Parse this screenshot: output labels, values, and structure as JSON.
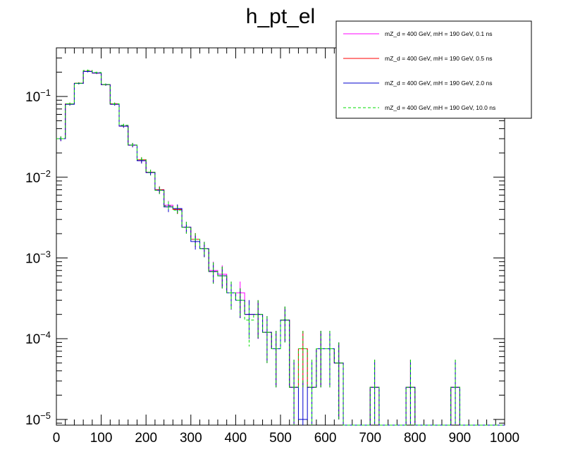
{
  "chart_data": {
    "type": "histogram-step",
    "title": "h_pt_el",
    "xlabel": "",
    "ylabel": "",
    "xlim": [
      0,
      1000
    ],
    "ylim": [
      8.5e-06,
      0.4
    ],
    "y_scale": "log",
    "grid": false,
    "legend_position": "top-right",
    "bin_width": 20,
    "bin_edges_start": 0,
    "x_tick_labels": [
      "0",
      "100",
      "200",
      "300",
      "400",
      "500",
      "600",
      "700",
      "800",
      "900",
      "1000"
    ],
    "x_tick_values": [
      0,
      100,
      200,
      300,
      400,
      500,
      600,
      700,
      800,
      900,
      1000
    ],
    "y_tick_labels": [
      {
        "base": "10",
        "exp": "−1",
        "value": 0.1
      },
      {
        "base": "10",
        "exp": "−2",
        "value": 0.01
      },
      {
        "base": "10",
        "exp": "−3",
        "value": 0.001
      },
      {
        "base": "10",
        "exp": "−4",
        "value": 0.0001
      },
      {
        "base": "10",
        "exp": "−5",
        "value": 1e-05
      }
    ],
    "series": [
      {
        "name": "mZ_d = 400 GeV, mH = 190 GeV, 0.1 ns",
        "color": "#ff00ff",
        "dash": "",
        "values": [
          0.03,
          0.08,
          0.145,
          0.205,
          0.195,
          0.14,
          0.08,
          0.043,
          0.025,
          0.016,
          0.0115,
          0.007,
          0.0045,
          0.004,
          0.0024,
          0.0017,
          0.0013,
          0.0007,
          0.00063,
          0.00037,
          0.00037,
          0.0002,
          0.0002,
          0.00012,
          7.5e-05,
          0.00017,
          2.5e-05,
          7.5e-05,
          2.5e-05,
          7.5e-05,
          7.5e-05,
          5e-05,
          0,
          0,
          0,
          2.5e-05,
          0,
          0,
          0,
          2.5e-05,
          0,
          0,
          0,
          0,
          2.5e-05,
          0,
          0,
          0,
          0,
          0
        ],
        "errors": [
          0.002,
          0.003,
          0.004,
          0.005,
          0.005,
          0.004,
          0.003,
          0.002,
          0.0015,
          0.0012,
          0.0009,
          0.0007,
          0.0006,
          0.0005,
          0.0004,
          0.00033,
          0.00028,
          0.0002,
          0.00018,
          0.00014,
          0.00014,
          0.0001,
          0.0001,
          7e-05,
          5e-05,
          8e-05,
          3e-05,
          5e-05,
          3e-05,
          5e-05,
          5e-05,
          4e-05,
          0,
          0,
          0,
          3e-05,
          0,
          0,
          0,
          3e-05,
          0,
          0,
          0,
          0,
          3e-05,
          0,
          0,
          0,
          0,
          0
        ]
      },
      {
        "name": "mZ_d = 400 GeV, mH = 190 GeV, 0.5 ns",
        "color": "#ff0000",
        "dash": "",
        "values": [
          0.03,
          0.081,
          0.146,
          0.205,
          0.195,
          0.14,
          0.081,
          0.043,
          0.025,
          0.0165,
          0.0115,
          0.007,
          0.0043,
          0.004,
          0.0024,
          0.0017,
          0.0013,
          0.00068,
          0.0006,
          0.00037,
          0.0003,
          0.0002,
          0.0002,
          0.00012,
          7.5e-05,
          0.00017,
          2.5e-05,
          7.5e-05,
          2.5e-05,
          7.5e-05,
          7.5e-05,
          5e-05,
          0,
          0,
          0,
          2.5e-05,
          0,
          0,
          0,
          2.5e-05,
          0,
          0,
          0,
          0,
          2.5e-05,
          0,
          0,
          0,
          0,
          0
        ],
        "errors": [
          0.002,
          0.003,
          0.004,
          0.005,
          0.005,
          0.004,
          0.003,
          0.002,
          0.0015,
          0.0012,
          0.0009,
          0.0007,
          0.0006,
          0.0005,
          0.0004,
          0.00033,
          0.00028,
          0.0002,
          0.00018,
          0.00014,
          0.00012,
          0.0001,
          0.0001,
          7e-05,
          5e-05,
          8e-05,
          3e-05,
          5e-05,
          3e-05,
          5e-05,
          5e-05,
          4e-05,
          0,
          0,
          0,
          3e-05,
          0,
          0,
          0,
          3e-05,
          0,
          0,
          0,
          0,
          3e-05,
          0,
          0,
          0,
          0,
          0
        ]
      },
      {
        "name": "mZ_d = 400 GeV, mH = 190 GeV, 2.0 ns",
        "color": "#0000cc",
        "dash": "",
        "values": [
          0.03,
          0.08,
          0.145,
          0.204,
          0.195,
          0.14,
          0.08,
          0.043,
          0.025,
          0.016,
          0.0114,
          0.0069,
          0.0043,
          0.0041,
          0.0024,
          0.0016,
          0.0013,
          0.00068,
          0.0006,
          0.00037,
          0.0003,
          0.0002,
          0.0002,
          0.00012,
          7.5e-05,
          0.00017,
          2.5e-05,
          1e-05,
          2.5e-05,
          7.5e-05,
          7.5e-05,
          5e-05,
          0,
          0,
          0,
          2.5e-05,
          0,
          0,
          0,
          2.5e-05,
          0,
          0,
          0,
          0,
          2.5e-05,
          0,
          0,
          0,
          0,
          0
        ],
        "errors": [
          0.002,
          0.003,
          0.004,
          0.005,
          0.005,
          0.004,
          0.003,
          0.002,
          0.0015,
          0.0012,
          0.0009,
          0.0007,
          0.0006,
          0.0005,
          0.0004,
          0.00033,
          0.00028,
          0.0002,
          0.00018,
          0.00014,
          0.00012,
          0.0001,
          0.0001,
          7e-05,
          5e-05,
          8e-05,
          3e-05,
          2e-05,
          3e-05,
          5e-05,
          5e-05,
          4e-05,
          0,
          0,
          0,
          3e-05,
          0,
          0,
          0,
          3e-05,
          0,
          0,
          0,
          0,
          3e-05,
          0,
          0,
          0,
          0,
          0
        ]
      },
      {
        "name": "mZ_d = 400 GeV, mH = 190 GeV, 10.0 ns",
        "color": "#00dd00",
        "dash": "4,3",
        "values": [
          0.03,
          0.081,
          0.146,
          0.21,
          0.198,
          0.141,
          0.081,
          0.044,
          0.025,
          0.0165,
          0.0115,
          0.0069,
          0.0044,
          0.0039,
          0.0024,
          0.0017,
          0.0013,
          0.00068,
          0.0006,
          0.00037,
          0.0003,
          0.00017,
          0.0002,
          0.00012,
          7.5e-05,
          0.00017,
          2.5e-05,
          7.5e-05,
          2.5e-05,
          7.5e-05,
          7.5e-05,
          5e-05,
          0,
          0,
          0,
          2.5e-05,
          0,
          0,
          0,
          2.5e-05,
          0,
          0,
          0,
          0,
          2.5e-05,
          0,
          0,
          0,
          0,
          0
        ],
        "errors": [
          0.002,
          0.003,
          0.004,
          0.005,
          0.005,
          0.004,
          0.003,
          0.002,
          0.0015,
          0.0012,
          0.0009,
          0.0007,
          0.0006,
          0.0005,
          0.0004,
          0.00033,
          0.00028,
          0.0002,
          0.00018,
          0.00014,
          0.00012,
          9e-05,
          0.0001,
          7e-05,
          5e-05,
          8e-05,
          3e-05,
          5e-05,
          3e-05,
          5e-05,
          5e-05,
          4e-05,
          0,
          0,
          0,
          3e-05,
          0,
          0,
          0,
          3e-05,
          0,
          0,
          0,
          0,
          3e-05,
          0,
          0,
          0,
          0,
          0
        ]
      }
    ]
  }
}
